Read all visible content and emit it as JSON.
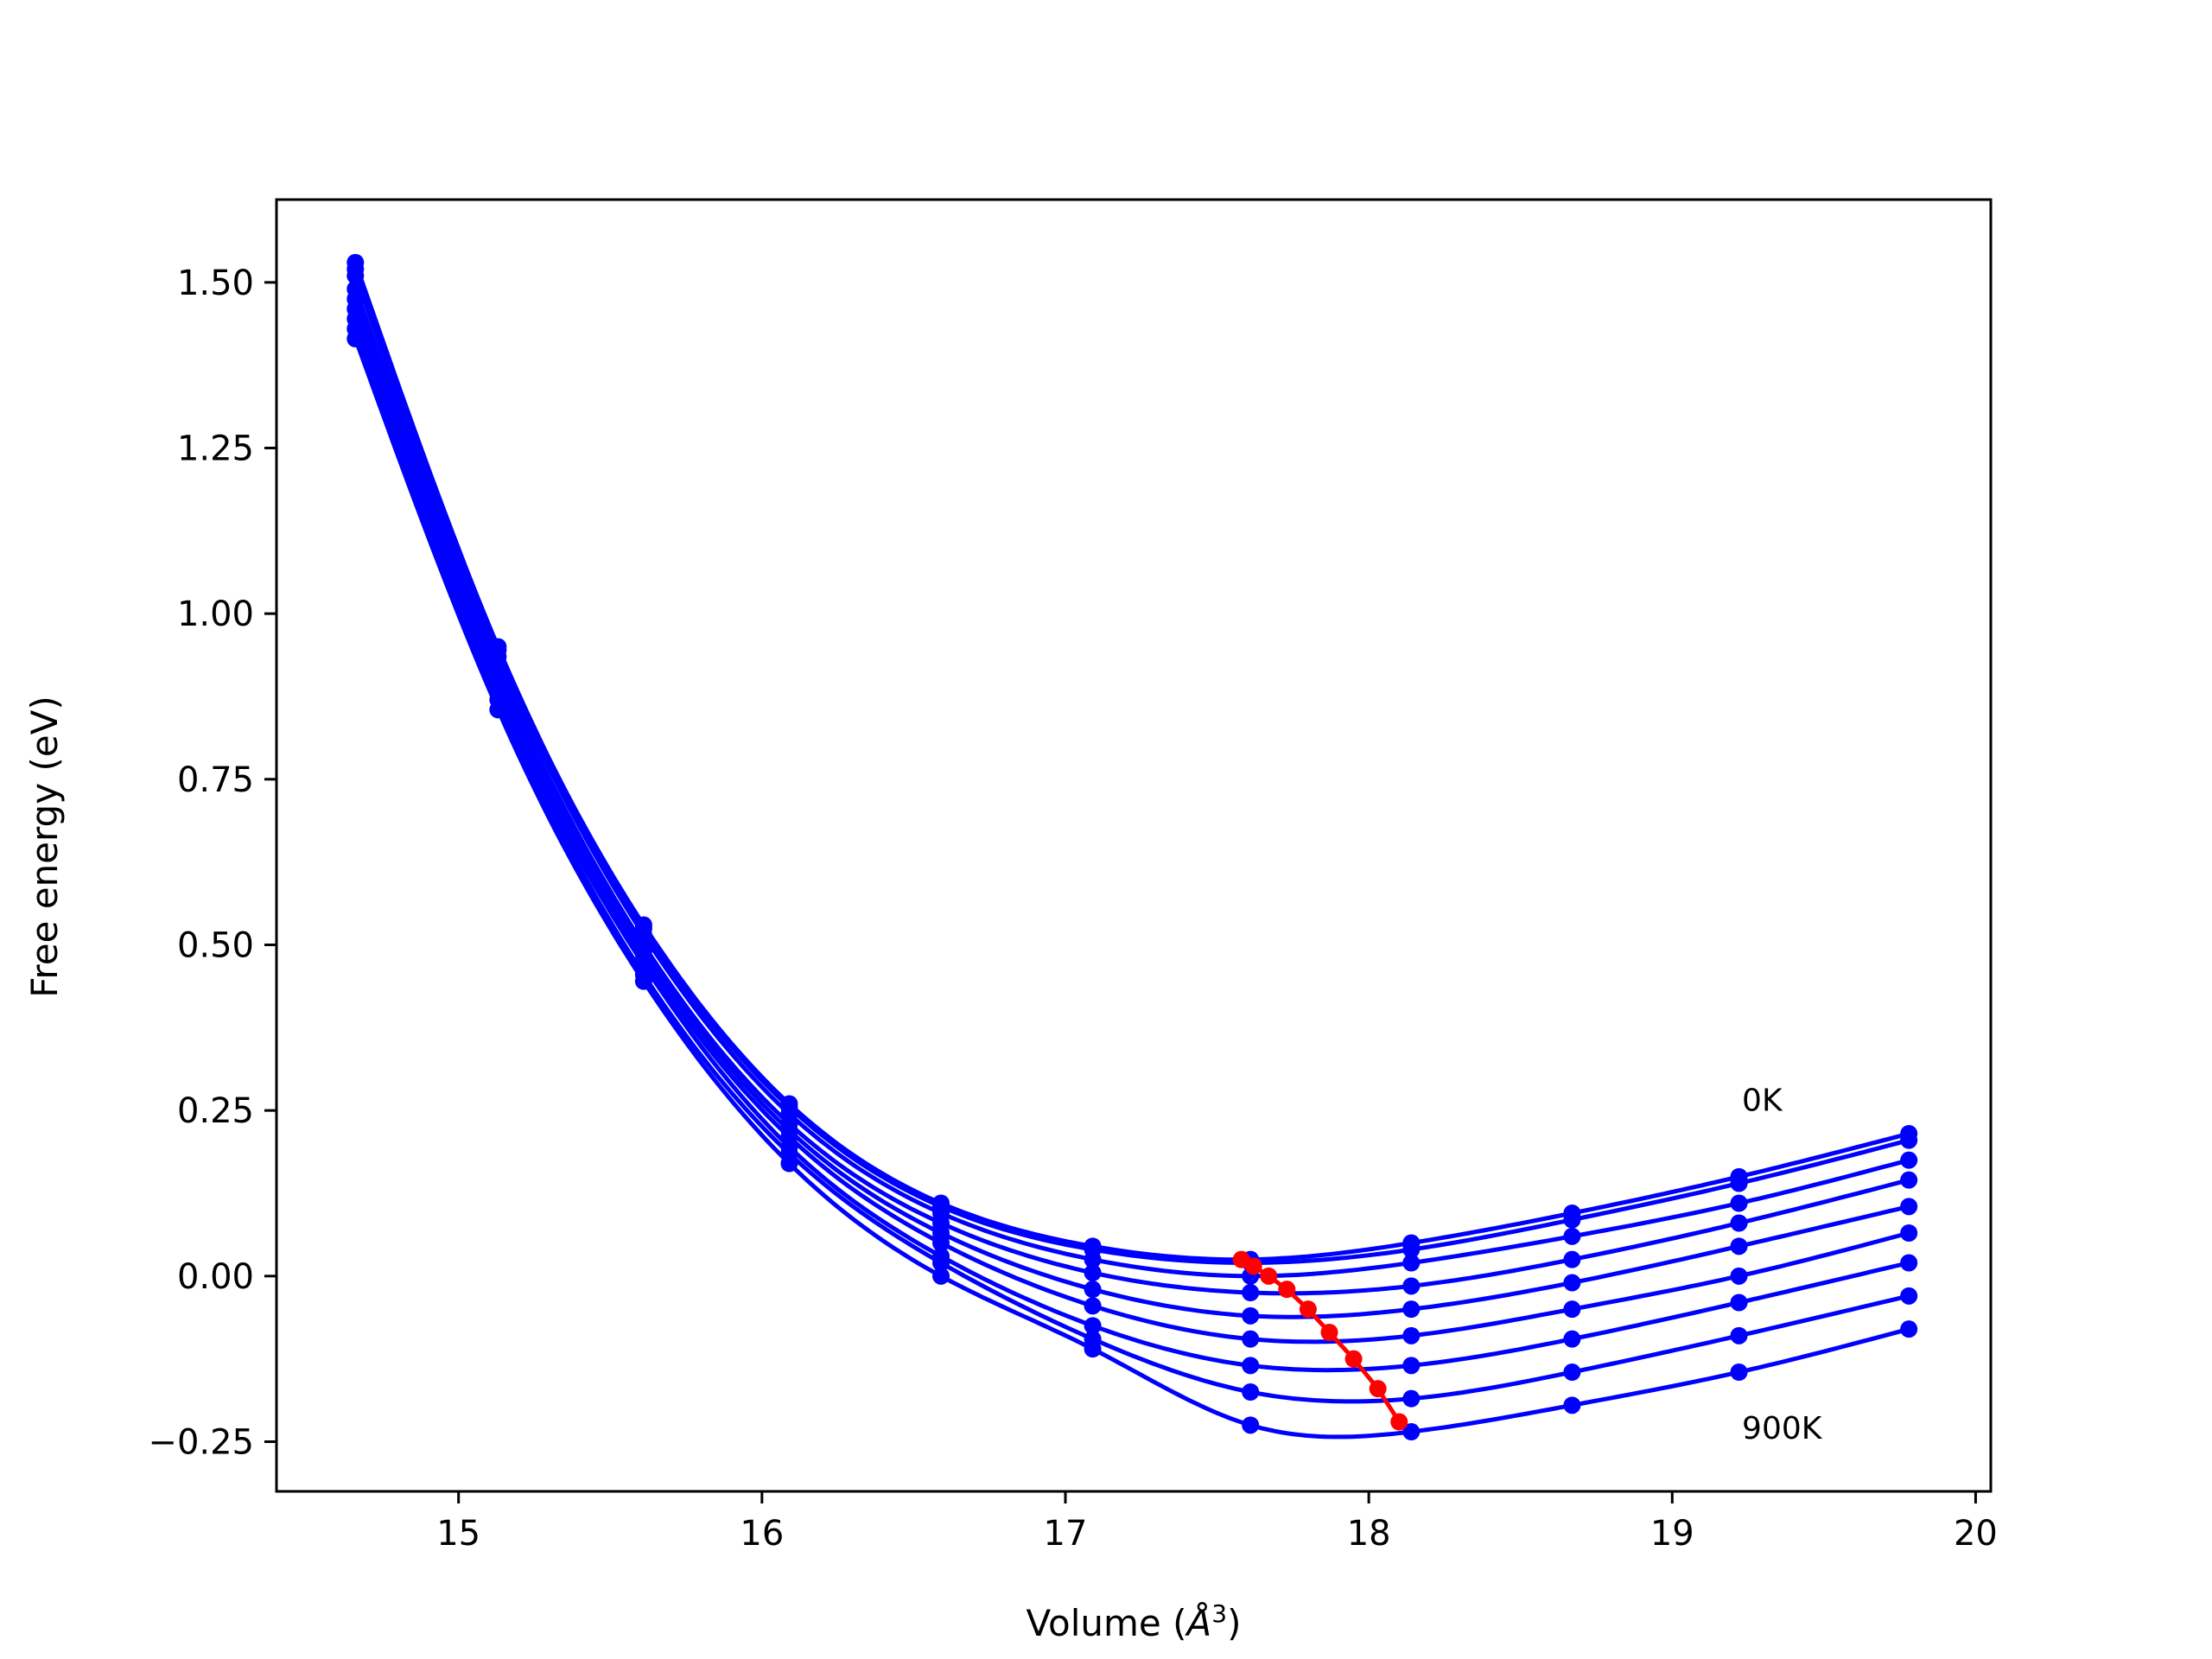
{
  "chart_data": {
    "type": "line",
    "title": "",
    "xlabel": "Volume (",
    "xlabel_unit": "Å",
    "xlabel_exp": "3",
    "xlabel_close": ")",
    "ylabel": "Free energy (eV)",
    "xlim": [
      14.4,
      20.05
    ],
    "ylim": [
      -0.325,
      1.625
    ],
    "xticks": [
      15,
      16,
      17,
      18,
      19,
      20
    ],
    "xtick_labels": [
      "15",
      "16",
      "17",
      "18",
      "19",
      "20"
    ],
    "yticks": [
      -0.25,
      0.0,
      0.25,
      0.5,
      0.75,
      1.0,
      1.25,
      1.5
    ],
    "ytick_labels": [
      "−0.25",
      "0.00",
      "0.25",
      "0.50",
      "0.75",
      "1.00",
      "1.25",
      "1.50"
    ],
    "grid": false,
    "legend": "none",
    "series_color": "#0000ff",
    "min_color": "#ff0000",
    "sample_volumes": [
      14.66,
      15.13,
      15.61,
      16.09,
      16.59,
      17.09,
      17.61,
      18.14,
      18.67,
      19.22,
      19.78
    ],
    "series": [
      {
        "values": [
          1.53,
          0.95,
          0.53,
          0.26,
          0.11,
          0.045,
          0.025,
          0.05,
          0.095,
          0.15,
          0.215
        ]
      },
      {
        "values": [
          1.52,
          0.945,
          0.525,
          0.255,
          0.105,
          0.04,
          0.02,
          0.04,
          0.085,
          0.14,
          0.205
        ]
      },
      {
        "values": [
          1.51,
          0.935,
          0.515,
          0.245,
          0.095,
          0.025,
          0.0,
          0.02,
          0.06,
          0.11,
          0.175
        ]
      },
      {
        "values": [
          1.49,
          0.92,
          0.5,
          0.23,
          0.08,
          0.005,
          -0.025,
          -0.015,
          0.025,
          0.08,
          0.145
        ]
      },
      {
        "values": [
          1.475,
          0.905,
          0.49,
          0.22,
          0.065,
          -0.02,
          -0.06,
          -0.05,
          -0.01,
          0.045,
          0.105
        ]
      },
      {
        "values": [
          1.46,
          0.895,
          0.48,
          0.21,
          0.05,
          -0.045,
          -0.095,
          -0.09,
          -0.05,
          0.0,
          0.065
        ]
      },
      {
        "values": [
          1.445,
          0.88,
          0.47,
          0.195,
          0.03,
          -0.075,
          -0.135,
          -0.135,
          -0.095,
          -0.04,
          0.02
        ]
      },
      {
        "values": [
          1.43,
          0.87,
          0.455,
          0.185,
          0.02,
          -0.095,
          -0.175,
          -0.185,
          -0.145,
          -0.09,
          -0.03
        ]
      },
      {
        "values": [
          1.415,
          0.855,
          0.445,
          0.17,
          0.0,
          -0.11,
          -0.225,
          -0.235,
          -0.195,
          -0.145,
          -0.08
        ]
      }
    ],
    "minima": {
      "x": [
        17.58,
        17.62,
        17.67,
        17.73,
        17.8,
        17.87,
        17.95,
        18.03,
        18.1
      ],
      "y": [
        0.025,
        0.015,
        0.0,
        -0.02,
        -0.05,
        -0.085,
        -0.125,
        -0.17,
        -0.22
      ]
    },
    "annotations": [
      {
        "text": "0K",
        "x": 19.23,
        "y": 0.265
      },
      {
        "text": "900K",
        "x": 19.23,
        "y": -0.23
      }
    ]
  }
}
